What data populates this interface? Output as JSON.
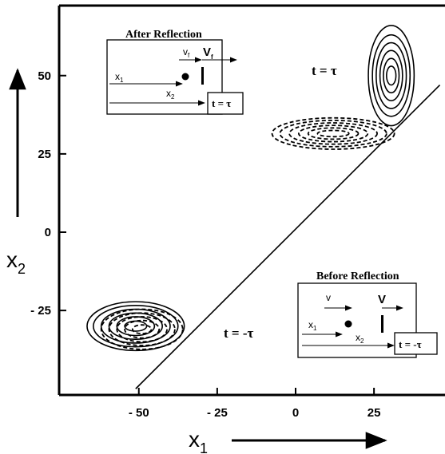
{
  "chart_data": {
    "type": "contour",
    "xlabel": "x",
    "xlabel_sub": "1",
    "ylabel": "x",
    "ylabel_sub": "2",
    "xlim": [
      -63,
      46
    ],
    "ylim": [
      -52,
      73
    ],
    "x_ticks": [
      -50,
      -25,
      0,
      25
    ],
    "x_tick_labels": [
      "- 50",
      "- 25",
      "0",
      "25"
    ],
    "y_ticks": [
      -25,
      0,
      25,
      50
    ],
    "y_tick_labels": [
      "- 25",
      "0",
      "25",
      "50"
    ],
    "mirror_line": {
      "from": [
        -51,
        -50
      ],
      "to": [
        46,
        47
      ]
    },
    "annotations": {
      "t_after": "t = τ",
      "t_before": "t = -τ"
    },
    "wavepackets": [
      {
        "name": "before-solid",
        "style": "solid",
        "center": [
          -51,
          -30
        ],
        "radii_x": [
          3.5,
          6,
          8.5,
          11,
          13.5,
          15.5
        ],
        "radii_y": [
          1.6,
          3,
          4.2,
          5.4,
          6.6,
          7.8
        ]
      },
      {
        "name": "before-dashed",
        "style": "dashed",
        "center": [
          -49,
          -31
        ],
        "radii_x": [
          3,
          5.5,
          8,
          10.5,
          13
        ],
        "radii_y": [
          1.4,
          2.8,
          4,
          5.2,
          6.4
        ]
      },
      {
        "name": "after-solid",
        "style": "solid",
        "center": [
          30.5,
          50
        ],
        "radii_x": [
          1.5,
          2.5,
          3.6,
          4.8,
          6,
          7.3
        ],
        "radii_y": [
          3,
          5.5,
          8,
          10.5,
          13,
          16
        ]
      },
      {
        "name": "after-dashed",
        "style": "dashed",
        "center": [
          12,
          31.5
        ],
        "radii_x": [
          5,
          8,
          11,
          14,
          17,
          19.5
        ],
        "radii_y": [
          1,
          1.8,
          2.6,
          3.4,
          4.2,
          5
        ]
      }
    ],
    "insets": [
      {
        "title": "After Reflection",
        "v_small": "v",
        "v_small_sub": "f",
        "v_big": "V",
        "v_big_sub": "f",
        "x1": "x",
        "x1_sub": "1",
        "x2": "x",
        "x2_sub": "2",
        "time": "t = τ"
      },
      {
        "title": "Before Reflection",
        "v_small": "v",
        "v_small_sub": "",
        "v_big": "V",
        "v_big_sub": "",
        "x1": "x",
        "x1_sub": "1",
        "x2": "x",
        "x2_sub": "2",
        "time": "t = -τ"
      }
    ]
  }
}
